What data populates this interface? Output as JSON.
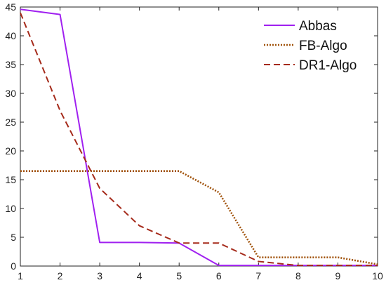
{
  "chart_data": {
    "type": "line",
    "title": "",
    "xlabel": "",
    "ylabel": "",
    "xlim": [
      1,
      10
    ],
    "ylim": [
      0,
      45
    ],
    "x_ticks": [
      "1",
      "2",
      "3",
      "4",
      "5",
      "6",
      "7",
      "8",
      "9",
      "10"
    ],
    "y_ticks": [
      "0",
      "5",
      "10",
      "15",
      "20",
      "25",
      "30",
      "35",
      "40",
      "45"
    ],
    "grid": false,
    "legend_position": "top-right",
    "x": [
      1,
      2,
      3,
      4,
      5,
      6,
      7,
      8,
      9,
      10
    ],
    "series": [
      {
        "name": "Abbas",
        "style": "solid",
        "color": "#a020f0",
        "values": [
          44.6,
          43.7,
          4.1,
          4.1,
          4.0,
          0.1,
          0.1,
          0.1,
          0.1,
          0.1
        ]
      },
      {
        "name": "FB-Algo",
        "style": "dotted",
        "color": "#a0520a",
        "values": [
          16.5,
          16.5,
          16.5,
          16.5,
          16.5,
          12.8,
          1.5,
          1.5,
          1.5,
          0.3
        ]
      },
      {
        "name": "DR1-Algo",
        "style": "dashed",
        "color": "#a52a1a",
        "values": [
          44.0,
          27.0,
          13.5,
          7.0,
          4.0,
          4.0,
          0.8,
          0.1,
          0.1,
          0.1
        ]
      }
    ]
  }
}
